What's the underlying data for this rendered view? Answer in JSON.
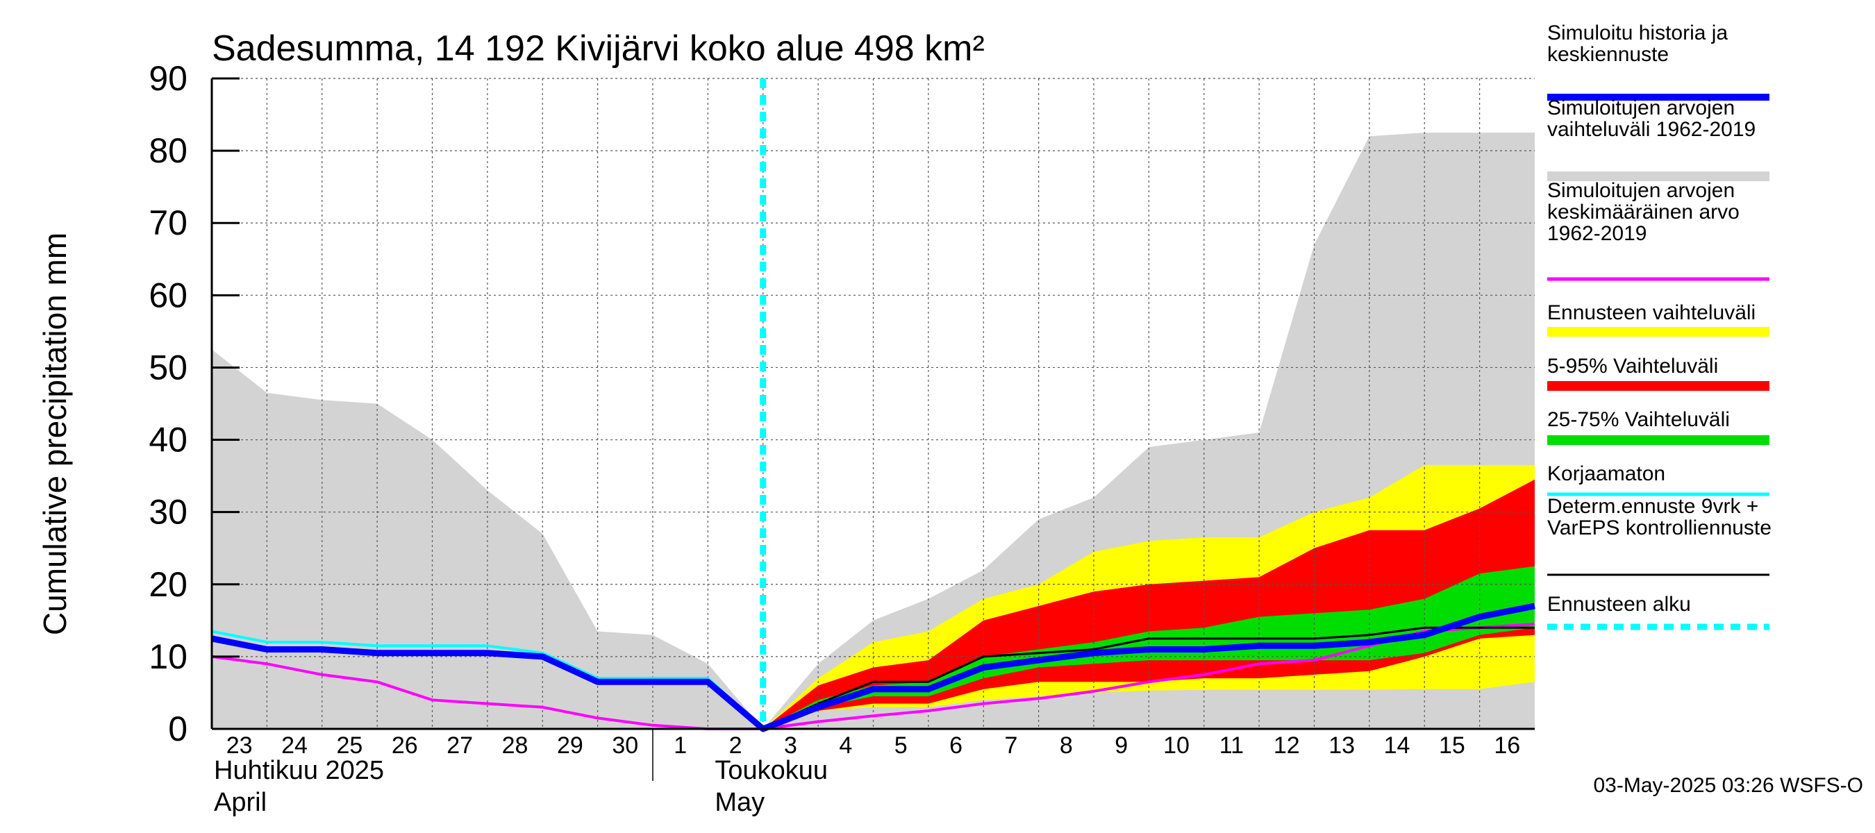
{
  "chart_data": {
    "type": "area",
    "title": "Sadesumma, 14 192 Kivijärvi koko alue 498 km²",
    "ylabel": "Cumulative precipitation   mm",
    "xlabel": "",
    "ylim": [
      0,
      90
    ],
    "yticks": [
      0,
      10,
      20,
      30,
      40,
      50,
      60,
      70,
      80,
      90
    ],
    "x_days": [
      "23",
      "24",
      "25",
      "26",
      "27",
      "28",
      "29",
      "30",
      "1",
      "2",
      "3",
      "4",
      "5",
      "6",
      "7",
      "8",
      "9",
      "10",
      "11",
      "12",
      "13",
      "14",
      "15",
      "16"
    ],
    "x_positions": [
      0,
      1,
      2,
      3,
      4,
      5,
      6,
      7,
      8,
      9,
      10,
      11,
      12,
      13,
      14,
      15,
      16,
      17,
      18,
      19,
      20,
      21,
      22,
      23
    ],
    "xlim": [
      0,
      24
    ],
    "month_labels": [
      {
        "line1": "Huhtikuu  2025",
        "line2": "April",
        "at": 0
      },
      {
        "line1": "Toukokuu",
        "line2": "May",
        "at": 9
      }
    ],
    "forecast_start_x": 10,
    "grid": true,
    "historical_range": {
      "name": "Simuloitujen arvojen vaihteluväli 1962-2019",
      "color": "#d3d3d3",
      "x": [
        0,
        1,
        2,
        3,
        4,
        5,
        6,
        7,
        8,
        9,
        10,
        11,
        12,
        13,
        14,
        15,
        16,
        17,
        18,
        19,
        20,
        21,
        22,
        23,
        24
      ],
      "upper": [
        52.5,
        46.5,
        45.5,
        45,
        40,
        33,
        27,
        13.5,
        13,
        9,
        0,
        9,
        15,
        18,
        22,
        29,
        32,
        39,
        40,
        41,
        67,
        82,
        82.5,
        82.5,
        82.5
      ],
      "lower": [
        0,
        0,
        0,
        0,
        0,
        0,
        0,
        0,
        0,
        0,
        0,
        0,
        0,
        0,
        0,
        0,
        0,
        0,
        0,
        0,
        0,
        0,
        0,
        0,
        0
      ]
    },
    "forecast_band_full": {
      "name": "Ennusteen vaihteluväli",
      "color": "#ffff00",
      "x": [
        10,
        11,
        12,
        13,
        14,
        15,
        16,
        17,
        18,
        19,
        20,
        21,
        22,
        23,
        24
      ],
      "upper": [
        0,
        7,
        12,
        13.5,
        18,
        20,
        24.5,
        26,
        26.5,
        26.5,
        30,
        32,
        36.5,
        36.5,
        36.5
      ],
      "lower": [
        0,
        2.5,
        3,
        3,
        4,
        4.5,
        5,
        5.3,
        5.4,
        5.4,
        5.4,
        5.4,
        5.5,
        5.5,
        6.5
      ]
    },
    "forecast_band_5_95": {
      "name": "5-95% Vaihteluväli",
      "color": "#ff0000",
      "x": [
        10,
        11,
        12,
        13,
        14,
        15,
        16,
        17,
        18,
        19,
        20,
        21,
        22,
        23,
        24
      ],
      "upper": [
        0,
        6,
        8.5,
        9.5,
        15,
        17,
        19,
        20,
        20.5,
        21,
        25,
        27.5,
        27.5,
        30.5,
        34.5
      ],
      "lower": [
        0,
        2.5,
        3.5,
        3.5,
        5.5,
        6.5,
        6.5,
        6.5,
        7,
        7,
        7.5,
        8,
        10,
        12.5,
        13
      ]
    },
    "forecast_band_25_75": {
      "name": "25-75% Vaihteluväli",
      "color": "#00dd00",
      "x": [
        10,
        11,
        12,
        13,
        14,
        15,
        16,
        17,
        18,
        19,
        20,
        21,
        22,
        23,
        24
      ],
      "upper": [
        0,
        4,
        6,
        6.5,
        10,
        11,
        12,
        13.5,
        14,
        15.5,
        16,
        16.5,
        18,
        21.5,
        22.5
      ],
      "lower": [
        0,
        3,
        4.5,
        4.5,
        7,
        8.5,
        9,
        9.5,
        9.5,
        9.5,
        9.5,
        9.5,
        10.5,
        13,
        14
      ]
    },
    "series": [
      {
        "name": "Simuloitu historia ja keskiennuste",
        "color": "#0000ff",
        "width": 9,
        "x": [
          0,
          1,
          2,
          3,
          4,
          5,
          6,
          7,
          8,
          9,
          10,
          11,
          12,
          13,
          14,
          15,
          16,
          17,
          18,
          19,
          20,
          21,
          22,
          23,
          24
        ],
        "y": [
          12.5,
          11,
          11,
          10.5,
          10.5,
          10.5,
          10,
          6.5,
          6.5,
          6.5,
          0,
          3,
          5.5,
          5.5,
          8.5,
          9.5,
          10.5,
          11,
          11,
          11.5,
          11.5,
          12,
          13,
          15.5,
          17
        ]
      },
      {
        "name": "Korjaamaton",
        "color": "#00ffff",
        "width": 4,
        "x": [
          0,
          1,
          2,
          3,
          4,
          5,
          6,
          7,
          8,
          9,
          10
        ],
        "y": [
          13.5,
          12,
          12,
          11.5,
          11.5,
          11.5,
          10.5,
          7,
          7,
          7,
          0
        ]
      },
      {
        "name": "Simuloitujen arvojen keskimääräinen arvo 1962-2019",
        "color": "#ff00ff",
        "width": 4,
        "x": [
          0,
          1,
          2,
          3,
          4,
          5,
          6,
          7,
          8,
          9,
          10,
          11,
          12,
          13,
          14,
          15,
          16,
          17,
          18,
          19,
          20,
          21,
          22,
          23,
          24
        ],
        "y": [
          10,
          9,
          7.5,
          6.5,
          4,
          3.5,
          3,
          1.5,
          0.5,
          0,
          0,
          1,
          1.8,
          2.5,
          3.5,
          4.2,
          5.2,
          6.5,
          7.5,
          9,
          9.5,
          11.5,
          13.5,
          14,
          14.5
        ]
      },
      {
        "name": "Determ.ennuste 9vrk + VarEPS kontrolliennuste",
        "color": "#000000",
        "width": 3,
        "x": [
          10,
          11,
          12,
          13,
          14,
          15,
          16,
          17,
          18,
          19,
          20,
          21,
          22,
          23,
          24
        ],
        "y": [
          0,
          3.5,
          6.5,
          6.5,
          10,
          10.5,
          11,
          12.5,
          12.5,
          12.5,
          12.5,
          13,
          14,
          14,
          14
        ]
      }
    ],
    "legend": {
      "placement": "right",
      "entries": [
        {
          "label": "Simuloitu historia ja\nkeskiennuste",
          "color": "#0000ff",
          "style": "line-thick"
        },
        {
          "label": "Simuloitujen arvojen\nvaihteluväli 1962-2019",
          "color": "#d3d3d3",
          "style": "band"
        },
        {
          "label": "Simuloitujen arvojen\nkeskimääräinen arvo\n   1962-2019",
          "color": "#ff00ff",
          "style": "line"
        },
        {
          "label": "Ennusteen vaihteluväli",
          "color": "#ffff00",
          "style": "band"
        },
        {
          "label": "5-95% Vaihteluväli",
          "color": "#ff0000",
          "style": "band"
        },
        {
          "label": "25-75% Vaihteluväli",
          "color": "#00dd00",
          "style": "band"
        },
        {
          "label": "Korjaamaton",
          "color": "#00ffff",
          "style": "line"
        },
        {
          "label": "Determ.ennuste 9vrk +\nVarEPS kontrolliennuste",
          "color": "#000000",
          "style": "line-thin"
        },
        {
          "label": "Ennusteen alku",
          "color": "#00ffff",
          "style": "dashed"
        }
      ]
    },
    "timestamp": "03-May-2025 03:26 WSFS-O"
  }
}
